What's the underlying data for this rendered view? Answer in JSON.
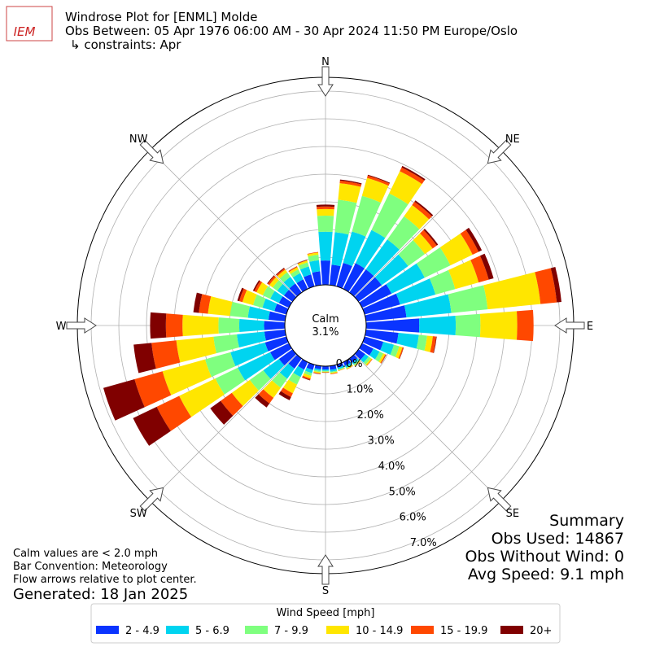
{
  "chart_data": {
    "type": "windrose",
    "logo_text": "IEM",
    "title": "Windrose Plot for [ENML] Molde",
    "subtitle": "Obs Between: 05 Apr 1976 06:00 AM - 30 Apr 2024 11:50 PM Europe/Oslo",
    "constraints": "↳ constraints: Apr",
    "direction_labels": [
      "N",
      "NE",
      "E",
      "SE",
      "S",
      "SW",
      "W",
      "NW"
    ],
    "calm_label": "Calm",
    "calm_value": "3.1%",
    "x": [
      0,
      10,
      20,
      30,
      40,
      50,
      60,
      70,
      80,
      90,
      100,
      110,
      120,
      130,
      140,
      150,
      160,
      170,
      180,
      190,
      200,
      210,
      220,
      230,
      240,
      250,
      260,
      270,
      280,
      290,
      300,
      310,
      320,
      330,
      340,
      350
    ],
    "rlim": [
      0,
      7.5
    ],
    "rticks": [
      {
        "value": 0,
        "label": "0.0%"
      },
      {
        "value": 1,
        "label": "1.0%"
      },
      {
        "value": 2,
        "label": "2.0%"
      },
      {
        "value": 3,
        "label": "3.0%"
      },
      {
        "value": 4,
        "label": "4.0%"
      },
      {
        "value": 5,
        "label": "5.0%"
      },
      {
        "value": 6,
        "label": "6.0%"
      },
      {
        "value": 7,
        "label": "7.0%"
      }
    ],
    "grid": true,
    "legend_title": "Wind Speed [mph]",
    "legend_position": "bottom",
    "series": [
      {
        "name": "2 - 4.9",
        "color": "#0a34ff",
        "values": [
          0.88,
          0.74,
          0.88,
          1.03,
          1.03,
          1.03,
          1.18,
          1.33,
          1.47,
          1.92,
          1.18,
          0.7,
          0.45,
          0.3,
          0.18,
          0.15,
          0.12,
          0.14,
          0.12,
          0.12,
          0.2,
          0.3,
          0.45,
          0.6,
          0.75,
          0.8,
          0.75,
          0.75,
          0.6,
          0.45,
          0.4,
          0.38,
          0.4,
          0.38,
          0.45,
          0.5
        ]
      },
      {
        "name": "5 - 6.9",
        "color": "#00d4f0",
        "values": [
          1.04,
          1.18,
          1.18,
          1.33,
          1.33,
          1.18,
          1.33,
          1.33,
          1.63,
          1.32,
          0.74,
          0.4,
          0.25,
          0.15,
          0.08,
          0.07,
          0.06,
          0.07,
          0.05,
          0.06,
          0.12,
          0.3,
          0.45,
          0.7,
          1.3,
          1.3,
          1.0,
          0.9,
          0.75,
          0.45,
          0.35,
          0.3,
          0.3,
          0.25,
          0.3,
          0.4
        ]
      },
      {
        "name": "7 - 9.9",
        "color": "#7fff7f",
        "values": [
          0.58,
          1.18,
          1.34,
          1.47,
          1.03,
          0.74,
          1.03,
          0.74,
          1.32,
          0.89,
          0.3,
          0.2,
          0.15,
          0.1,
          0.05,
          0.04,
          0.03,
          0.04,
          0.03,
          0.05,
          0.1,
          0.3,
          0.4,
          0.6,
          0.9,
          0.95,
          0.85,
          0.75,
          0.65,
          0.35,
          0.3,
          0.2,
          0.2,
          0.15,
          0.15,
          0.2
        ]
      },
      {
        "name": "10 - 14.9",
        "color": "#ffe600",
        "values": [
          0.24,
          0.6,
          0.67,
          0.89,
          0.5,
          0.35,
          0.89,
          0.88,
          1.92,
          1.33,
          0.21,
          0.12,
          0.08,
          0.05,
          0.03,
          0.03,
          0.02,
          0.03,
          0.02,
          0.04,
          0.1,
          0.35,
          0.45,
          0.8,
          1.45,
          1.6,
          1.35,
          1.3,
          0.8,
          0.4,
          0.25,
          0.15,
          0.12,
          0.09,
          0.07,
          0.08
        ]
      },
      {
        "name": "15 - 19.9",
        "color": "#ff4800",
        "values": [
          0.09,
          0.09,
          0.09,
          0.15,
          0.15,
          0.18,
          0.24,
          0.38,
          0.59,
          0.59,
          0.12,
          0.04,
          0.03,
          0.02,
          0.01,
          0.01,
          0.01,
          0.02,
          0.01,
          0.02,
          0.05,
          0.15,
          0.25,
          0.5,
          0.9,
          1.05,
          0.9,
          0.6,
          0.33,
          0.12,
          0.09,
          0.07,
          0.05,
          0.03,
          0.02,
          0.02
        ]
      },
      {
        "name": "20+",
        "color": "#800000",
        "values": [
          0.07,
          0.04,
          0.03,
          0.06,
          0.06,
          0.06,
          0.13,
          0.18,
          0.17,
          0.0,
          0.02,
          0.01,
          0.01,
          0,
          0,
          0,
          0,
          0,
          0.01,
          0.01,
          0.02,
          0.13,
          0.18,
          0.46,
          0.95,
          1.17,
          0.65,
          0.57,
          0.2,
          0.07,
          0.05,
          0.03,
          0.03,
          0.01,
          0.01,
          0.0
        ]
      }
    ],
    "notes": [
      "Calm values are < 2.0 mph",
      "Bar Convention: Meteorology",
      "Flow arrows relative to plot center."
    ],
    "generated": "Generated: 18 Jan 2025",
    "summary": [
      "Summary",
      "Obs Used: 14867",
      "Obs Without Wind: 0",
      "Avg Speed: 9.1 mph"
    ]
  }
}
